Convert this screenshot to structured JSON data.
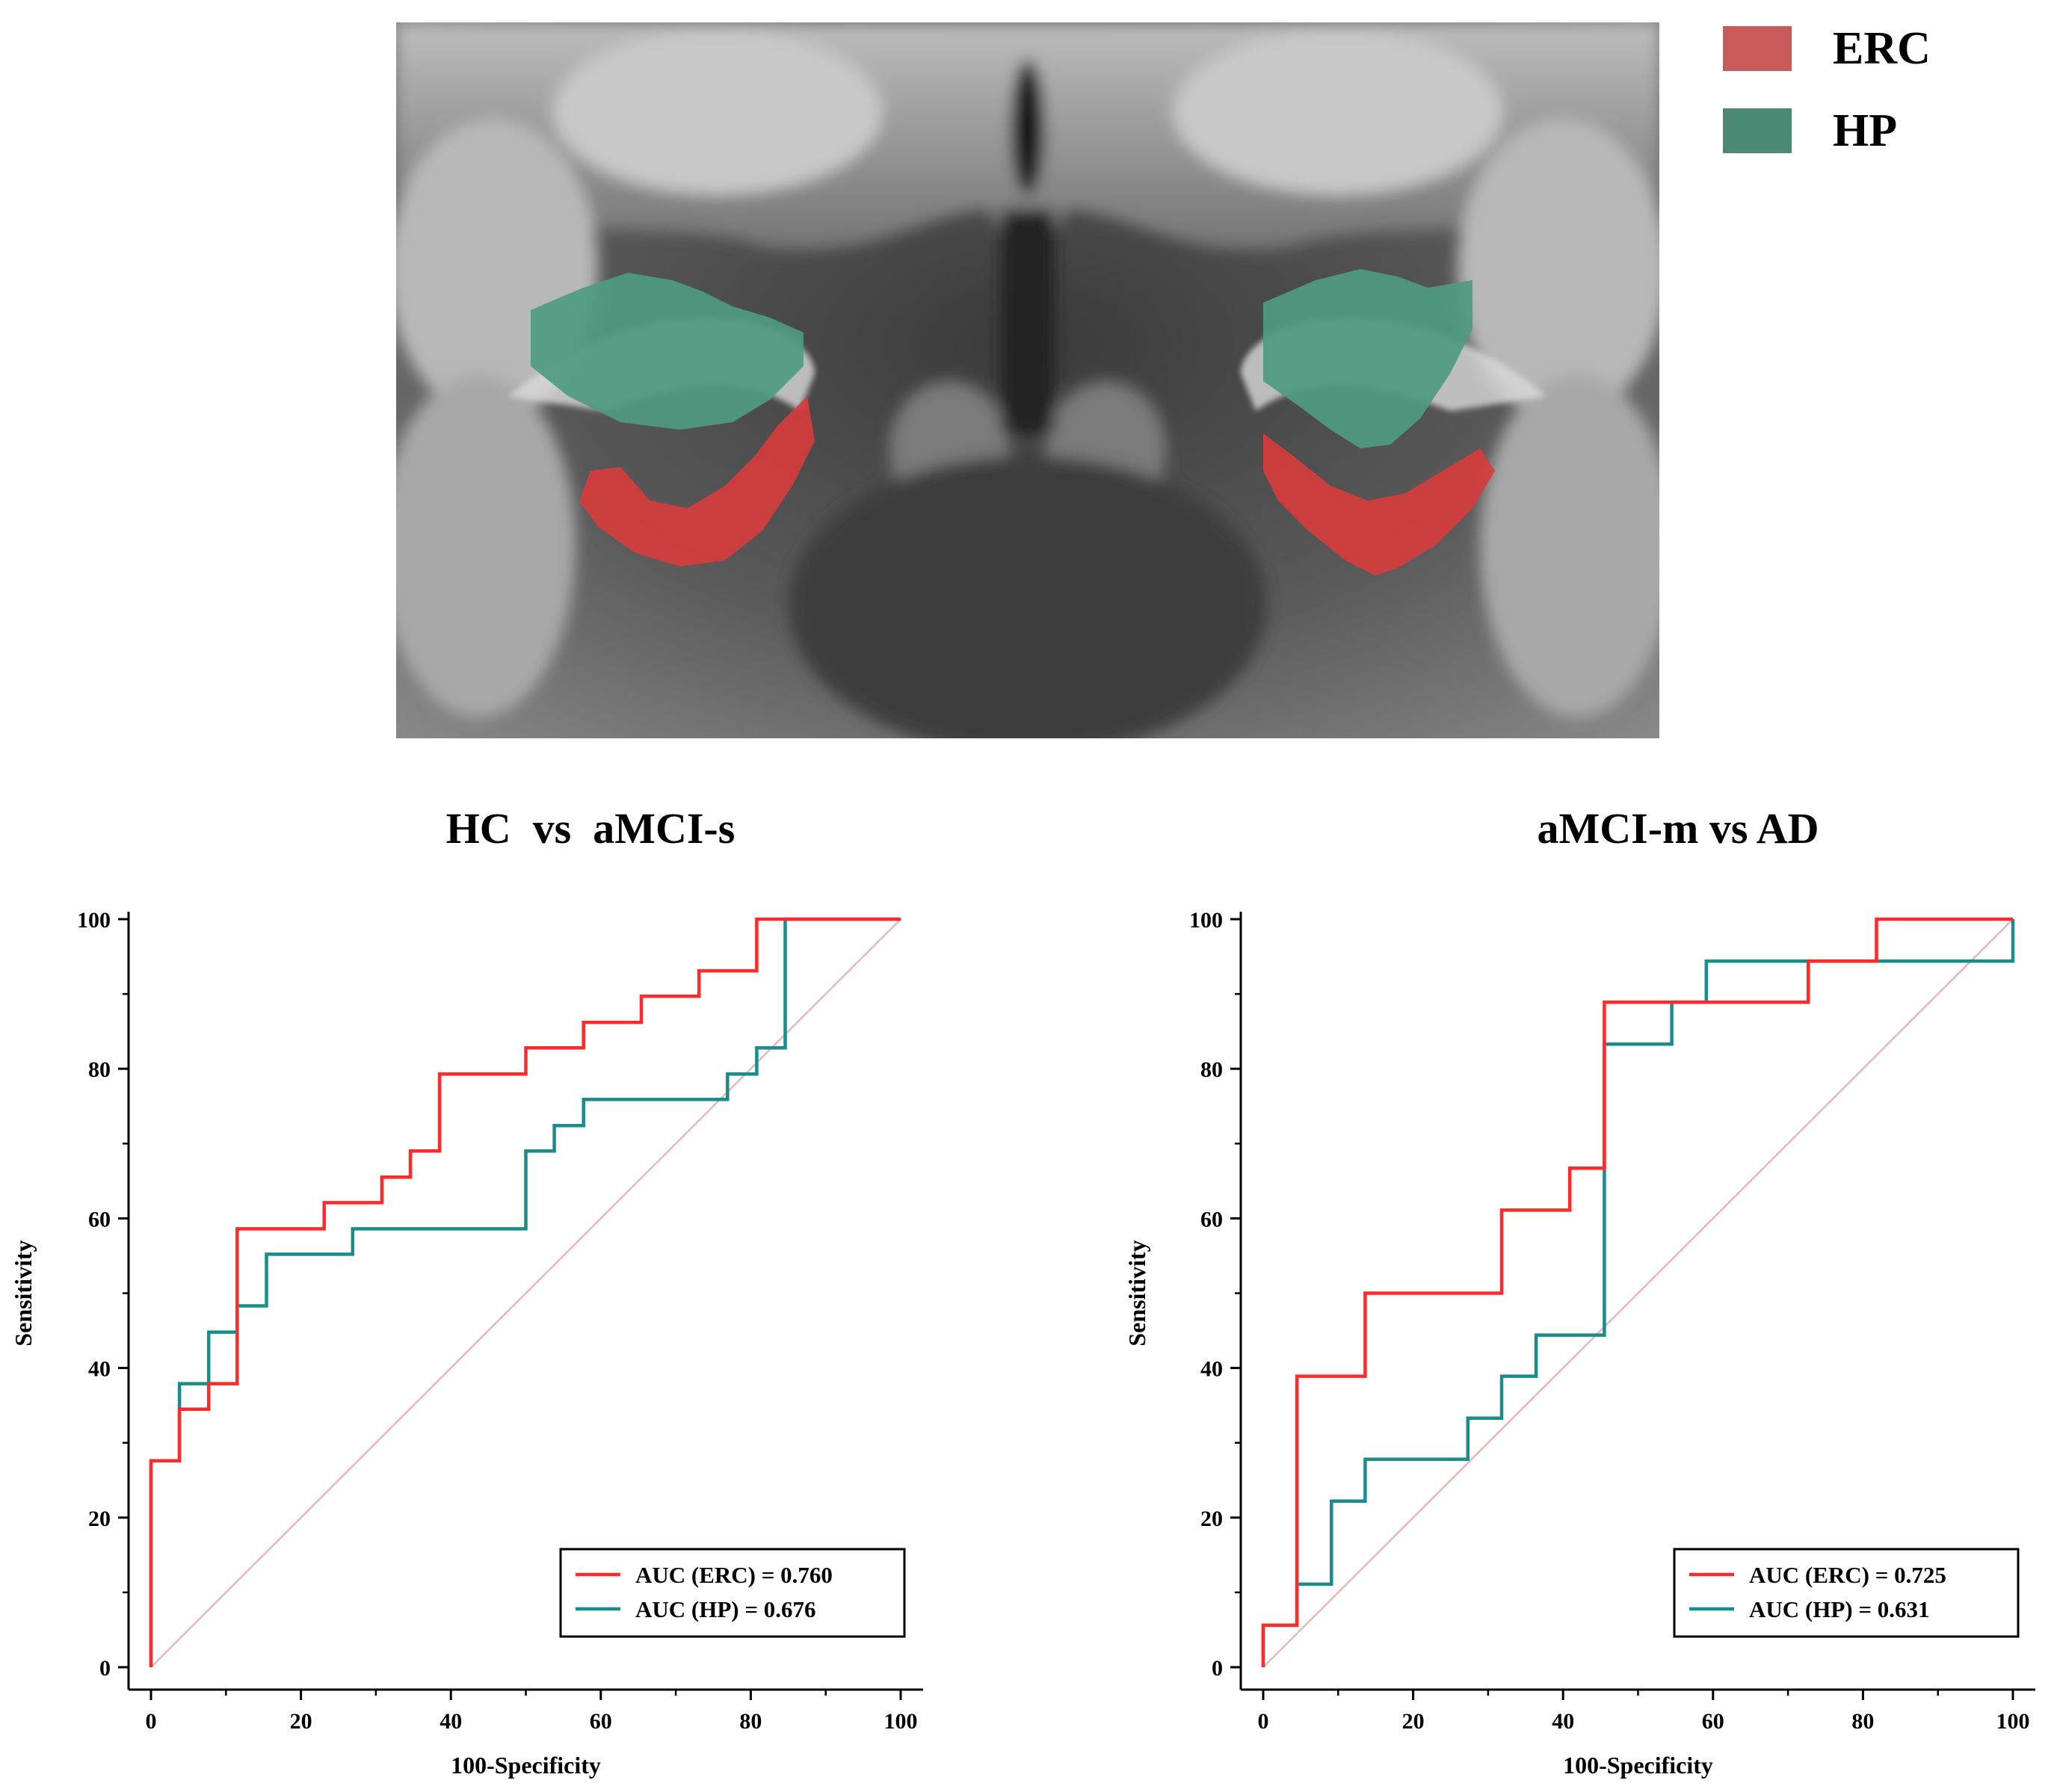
{
  "legend": {
    "items": [
      {
        "label": "ERC",
        "color": "#c85a5a"
      },
      {
        "label": "HP",
        "color": "#4a8a74"
      }
    ]
  },
  "colors": {
    "erc_line": "#ff2a2a",
    "hp_line": "#1a8c8c",
    "diagonal": "#e8b8b8",
    "erc_overlay": "#d83c3c",
    "hp_overlay": "#4f9a80"
  },
  "chart_data": [
    {
      "type": "line",
      "title": "HC  vs  aMCI-s",
      "xlabel": "100-Specificity",
      "ylabel": "Sensitivity",
      "xlim": [
        0,
        100
      ],
      "ylim": [
        0,
        100
      ],
      "xticks": [
        "0",
        "20",
        "40",
        "60",
        "80",
        "100"
      ],
      "yticks": [
        "0",
        "20",
        "40",
        "60",
        "80",
        "100"
      ],
      "series": [
        {
          "name": "ERC",
          "legend_label": "AUC (ERC) = 0.760",
          "auc": 0.76,
          "x": [
            0,
            0,
            3.8,
            3.8,
            7.7,
            7.7,
            11.5,
            11.5,
            23.1,
            23.1,
            30.8,
            30.8,
            34.6,
            34.6,
            38.5,
            38.5,
            50,
            50,
            57.7,
            57.7,
            65.4,
            65.4,
            73.1,
            73.1,
            80.8,
            80.8,
            84.6,
            84.6,
            100
          ],
          "y": [
            0,
            27.6,
            27.6,
            34.5,
            34.5,
            37.9,
            37.9,
            58.6,
            58.6,
            62.1,
            62.1,
            65.5,
            65.5,
            69,
            69,
            79.3,
            79.3,
            82.8,
            82.8,
            86.2,
            86.2,
            89.7,
            89.7,
            93.1,
            93.1,
            100,
            100,
            100,
            100
          ]
        },
        {
          "name": "HP",
          "legend_label": "AUC (HP) = 0.676",
          "auc": 0.676,
          "x": [
            0,
            0,
            3.8,
            3.8,
            7.7,
            7.7,
            11.5,
            11.5,
            15.4,
            15.4,
            26.9,
            26.9,
            50,
            50,
            53.8,
            53.8,
            57.7,
            57.7,
            76.9,
            76.9,
            80.8,
            80.8,
            84.6,
            84.6,
            100
          ],
          "y": [
            0,
            27.6,
            27.6,
            37.9,
            37.9,
            44.8,
            44.8,
            48.3,
            48.3,
            55.2,
            55.2,
            58.6,
            58.6,
            69,
            69,
            72.4,
            72.4,
            75.9,
            75.9,
            79.3,
            79.3,
            82.8,
            82.8,
            100,
            100
          ]
        }
      ]
    },
    {
      "type": "line",
      "title": "aMCI-m vs AD",
      "xlabel": "100-Specificity",
      "ylabel": "Sensitivity",
      "xlim": [
        0,
        100
      ],
      "ylim": [
        0,
        100
      ],
      "xticks": [
        "0",
        "20",
        "40",
        "60",
        "80",
        "100"
      ],
      "yticks": [
        "0",
        "20",
        "40",
        "60",
        "80",
        "100"
      ],
      "series": [
        {
          "name": "ERC",
          "legend_label": "AUC (ERC) = 0.725",
          "auc": 0.725,
          "x": [
            0,
            0,
            4.5,
            4.5,
            13.6,
            13.6,
            31.8,
            31.8,
            40.9,
            40.9,
            45.5,
            45.5,
            72.7,
            72.7,
            81.8,
            81.8,
            100,
            100
          ],
          "y": [
            0,
            5.6,
            5.6,
            38.9,
            38.9,
            50,
            50,
            61.1,
            61.1,
            66.7,
            66.7,
            88.9,
            88.9,
            94.4,
            94.4,
            100,
            100,
            100
          ]
        },
        {
          "name": "HP",
          "legend_label": "AUC (HP) = 0.631",
          "auc": 0.631,
          "x": [
            0,
            0,
            4.5,
            4.5,
            9.1,
            9.1,
            13.6,
            13.6,
            27.3,
            27.3,
            31.8,
            31.8,
            36.4,
            36.4,
            45.5,
            45.5,
            54.5,
            54.5,
            59.1,
            59.1,
            100,
            100
          ],
          "y": [
            0,
            5.6,
            5.6,
            11.1,
            11.1,
            22.2,
            22.2,
            27.8,
            27.8,
            33.3,
            33.3,
            38.9,
            38.9,
            44.4,
            44.4,
            83.3,
            83.3,
            88.9,
            88.9,
            94.4,
            94.4,
            100
          ]
        }
      ]
    }
  ]
}
